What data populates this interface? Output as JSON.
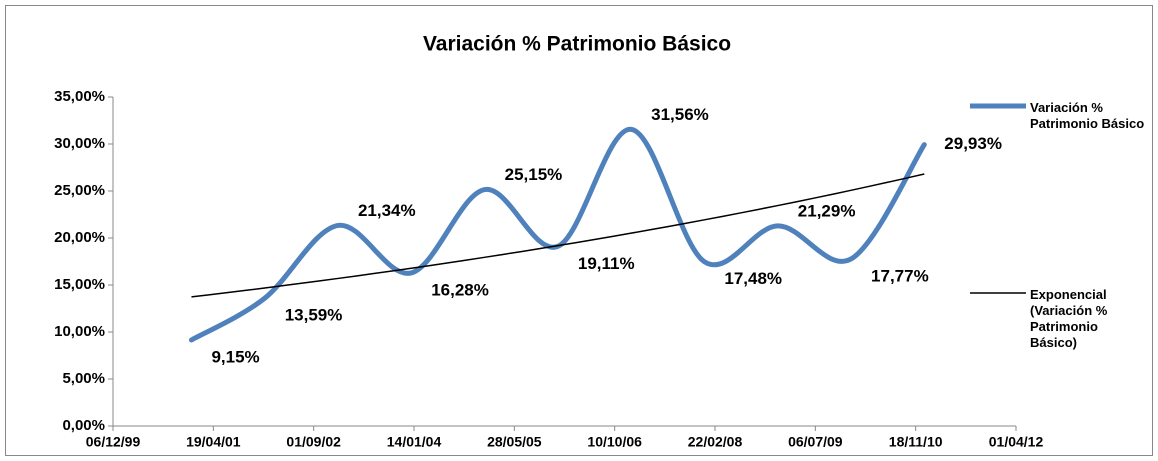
{
  "chart_data": {
    "type": "line",
    "title": "Variación % Patrimonio Básico",
    "x": [
      "31/12/00",
      "31/12/01",
      "31/12/02",
      "31/12/03",
      "31/12/04",
      "31/12/05",
      "31/12/06",
      "31/12/07",
      "31/12/08",
      "31/12/09",
      "31/12/10"
    ],
    "series": [
      {
        "name": "Variación % Patrimonio Básico",
        "color": "#4f81bd",
        "values": [
          9.15,
          13.59,
          21.34,
          16.28,
          25.15,
          19.11,
          31.56,
          17.48,
          21.29,
          17.77,
          29.93
        ],
        "value_labels": [
          "9,15%",
          "13,59%",
          "21,34%",
          "16,28%",
          "25,15%",
          "19,11%",
          "31,56%",
          "17,48%",
          "21,29%",
          "17,77%",
          "29,93%"
        ]
      }
    ],
    "trendline": {
      "name": "Exponencial (Variación % Patrimonio Básico)",
      "color": "#000000",
      "kind": "exponential"
    },
    "xlim": [
      "06/12/99",
      "01/04/12"
    ],
    "xticks": [
      "06/12/99",
      "19/04/01",
      "01/09/02",
      "14/01/04",
      "28/05/05",
      "10/10/06",
      "22/02/08",
      "06/07/09",
      "18/11/10",
      "01/04/12"
    ],
    "ylim": [
      0,
      35
    ],
    "yticks": [
      {
        "value": 0,
        "label": "0,00%"
      },
      {
        "value": 5,
        "label": "5,00%"
      },
      {
        "value": 10,
        "label": "10,00%"
      },
      {
        "value": 15,
        "label": "15,00%"
      },
      {
        "value": 20,
        "label": "20,00%"
      },
      {
        "value": 25,
        "label": "25,00%"
      },
      {
        "value": 30,
        "label": "30,00%"
      },
      {
        "value": 35,
        "label": "35,00%"
      }
    ],
    "grid": false,
    "legend": "right"
  }
}
